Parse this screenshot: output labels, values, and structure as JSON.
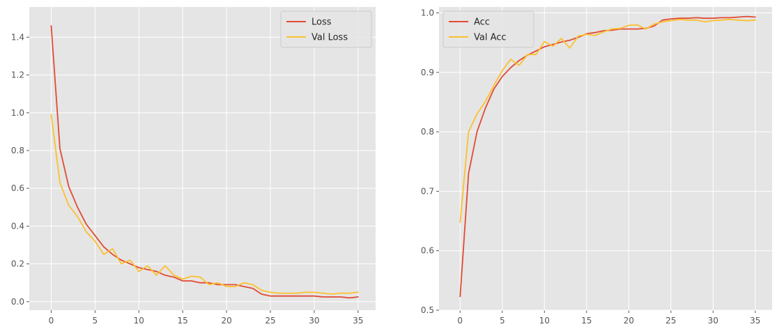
{
  "chart_data": [
    {
      "type": "line",
      "title": "",
      "xlabel": "",
      "ylabel": "",
      "xlim": [
        -2.5,
        37
      ],
      "ylim": [
        -0.045,
        1.56
      ],
      "grid": true,
      "legend_position": "top-right",
      "x_ticks": [
        0,
        5,
        10,
        15,
        20,
        25,
        30,
        35
      ],
      "x_tick_labels": [
        "0",
        "5",
        "10",
        "15",
        "20",
        "25",
        "30",
        "35"
      ],
      "y_ticks": [
        0.0,
        0.2,
        0.4,
        0.6,
        0.8,
        1.0,
        1.2,
        1.4
      ],
      "y_tick_labels": [
        "0.0",
        "0.2",
        "0.4",
        "0.6",
        "0.8",
        "1.0",
        "1.2",
        "1.4"
      ],
      "x": [
        0,
        1,
        2,
        3,
        4,
        5,
        6,
        7,
        8,
        9,
        10,
        11,
        12,
        13,
        14,
        15,
        16,
        17,
        18,
        19,
        20,
        21,
        22,
        23,
        24,
        25,
        26,
        27,
        28,
        29,
        30,
        31,
        32,
        33,
        34,
        35
      ],
      "series": [
        {
          "name": "Loss",
          "color": "#e24a33",
          "values": [
            1.46,
            0.81,
            0.61,
            0.5,
            0.41,
            0.35,
            0.29,
            0.25,
            0.22,
            0.2,
            0.18,
            0.17,
            0.16,
            0.14,
            0.13,
            0.11,
            0.11,
            0.1,
            0.1,
            0.09,
            0.09,
            0.09,
            0.08,
            0.07,
            0.04,
            0.03,
            0.03,
            0.03,
            0.03,
            0.03,
            0.03,
            0.025,
            0.025,
            0.025,
            0.02,
            0.025
          ]
        },
        {
          "name": "Val Loss",
          "color": "#fbc02d",
          "values": [
            0.99,
            0.63,
            0.51,
            0.45,
            0.37,
            0.32,
            0.25,
            0.28,
            0.2,
            0.22,
            0.16,
            0.19,
            0.14,
            0.19,
            0.14,
            0.12,
            0.135,
            0.13,
            0.09,
            0.1,
            0.08,
            0.08,
            0.1,
            0.09,
            0.06,
            0.05,
            0.045,
            0.045,
            0.045,
            0.05,
            0.05,
            0.045,
            0.04,
            0.045,
            0.045,
            0.05
          ]
        }
      ]
    },
    {
      "type": "line",
      "title": "",
      "xlabel": "",
      "ylabel": "",
      "xlim": [
        -2.5,
        37
      ],
      "ylim": [
        0.5,
        1.01
      ],
      "grid": true,
      "legend_position": "top-left",
      "x_ticks": [
        0,
        5,
        10,
        15,
        20,
        25,
        30,
        35
      ],
      "x_tick_labels": [
        "0",
        "5",
        "10",
        "15",
        "20",
        "25",
        "30",
        "35"
      ],
      "y_ticks": [
        0.5,
        0.6,
        0.7,
        0.8,
        0.9,
        1.0
      ],
      "y_tick_labels": [
        "0.5",
        "0.6",
        "0.7",
        "0.8",
        "0.9",
        "1.0"
      ],
      "x": [
        0,
        1,
        2,
        3,
        4,
        5,
        6,
        7,
        8,
        9,
        10,
        11,
        12,
        13,
        14,
        15,
        16,
        17,
        18,
        19,
        20,
        21,
        22,
        23,
        24,
        25,
        26,
        27,
        28,
        29,
        30,
        31,
        32,
        33,
        34,
        35
      ],
      "series": [
        {
          "name": "Acc",
          "color": "#e24a33",
          "values": [
            0.523,
            0.73,
            0.8,
            0.84,
            0.872,
            0.893,
            0.908,
            0.92,
            0.929,
            0.936,
            0.943,
            0.947,
            0.951,
            0.954,
            0.959,
            0.965,
            0.967,
            0.97,
            0.971,
            0.973,
            0.973,
            0.973,
            0.974,
            0.978,
            0.988,
            0.99,
            0.991,
            0.991,
            0.992,
            0.991,
            0.991,
            0.992,
            0.992,
            0.993,
            0.994,
            0.993
          ]
        },
        {
          "name": "Val Acc",
          "color": "#fbc02d",
          "values": [
            0.648,
            0.8,
            0.83,
            0.851,
            0.878,
            0.903,
            0.922,
            0.912,
            0.93,
            0.93,
            0.952,
            0.944,
            0.957,
            0.941,
            0.961,
            0.964,
            0.962,
            0.968,
            0.973,
            0.974,
            0.979,
            0.98,
            0.973,
            0.981,
            0.985,
            0.987,
            0.989,
            0.988,
            0.988,
            0.985,
            0.987,
            0.988,
            0.989,
            0.988,
            0.987,
            0.988
          ]
        }
      ]
    }
  ]
}
